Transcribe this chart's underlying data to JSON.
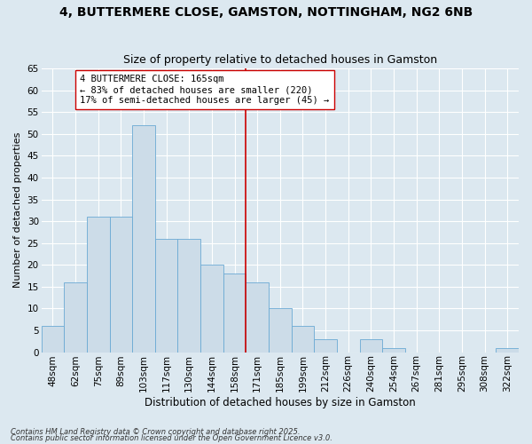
{
  "title": "4, BUTTERMERE CLOSE, GAMSTON, NOTTINGHAM, NG2 6NB",
  "subtitle": "Size of property relative to detached houses in Gamston",
  "xlabel": "Distribution of detached houses by size in Gamston",
  "ylabel": "Number of detached properties",
  "bin_labels": [
    "48sqm",
    "62sqm",
    "75sqm",
    "89sqm",
    "103sqm",
    "117sqm",
    "130sqm",
    "144sqm",
    "158sqm",
    "171sqm",
    "185sqm",
    "199sqm",
    "212sqm",
    "226sqm",
    "240sqm",
    "254sqm",
    "267sqm",
    "281sqm",
    "295sqm",
    "308sqm",
    "322sqm"
  ],
  "bar_values": [
    6,
    16,
    31,
    31,
    52,
    26,
    26,
    20,
    18,
    16,
    10,
    6,
    3,
    0,
    3,
    1,
    0,
    0,
    0,
    0,
    1
  ],
  "bar_color": "#ccdce8",
  "bar_edge_color": "#6aaad4",
  "vline_x_index": 8.5,
  "vline_color": "#cc0000",
  "annotation_text": "4 BUTTERMERE CLOSE: 165sqm\n← 83% of detached houses are smaller (220)\n17% of semi-detached houses are larger (45) →",
  "annotation_box_color": "#ffffff",
  "annotation_box_edge": "#cc0000",
  "ylim": [
    0,
    65
  ],
  "yticks": [
    0,
    5,
    10,
    15,
    20,
    25,
    30,
    35,
    40,
    45,
    50,
    55,
    60,
    65
  ],
  "background_color": "#dce8f0",
  "grid_color": "#ffffff",
  "footer_line1": "Contains HM Land Registry data © Crown copyright and database right 2025.",
  "footer_line2": "Contains public sector information licensed under the Open Government Licence v3.0.",
  "title_fontsize": 10,
  "subtitle_fontsize": 9,
  "annotation_fontsize": 7.5,
  "ylabel_fontsize": 8,
  "xlabel_fontsize": 8.5,
  "tick_fontsize": 7.5,
  "footer_fontsize": 6
}
